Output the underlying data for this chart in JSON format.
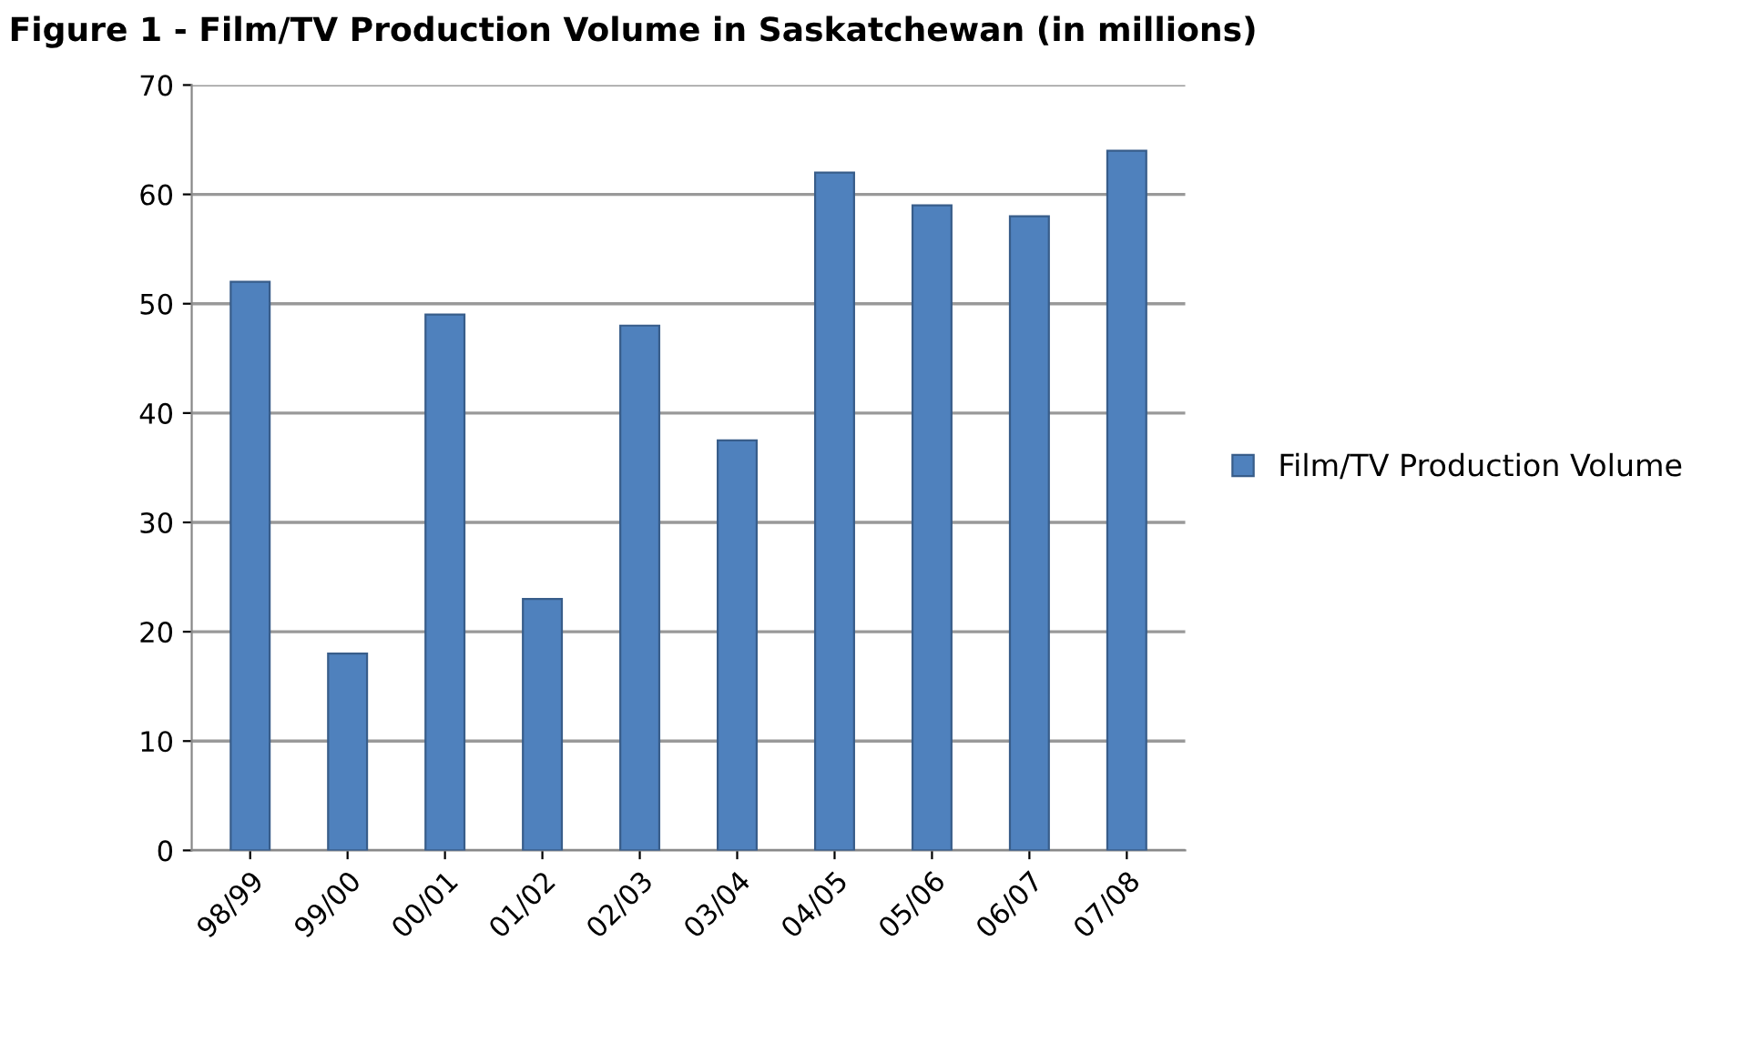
{
  "chart_data": {
    "type": "bar",
    "title": "Figure 1 - Film/TV Production Volume in Saskatchewan (in millions)",
    "categories": [
      "98/99",
      "99/00",
      "00/01",
      "01/02",
      "02/03",
      "03/04",
      "04/05",
      "05/06",
      "06/07",
      "07/08"
    ],
    "series": [
      {
        "name": "Film/TV Production Volume",
        "color": "#4f81bd",
        "values": [
          52,
          18,
          49,
          23,
          48,
          37.5,
          62,
          59,
          58,
          64
        ]
      }
    ],
    "ylim": [
      0,
      70
    ],
    "yticks": [
      0,
      10,
      20,
      30,
      40,
      50,
      60,
      70
    ],
    "grid": "y",
    "legend": "right"
  }
}
